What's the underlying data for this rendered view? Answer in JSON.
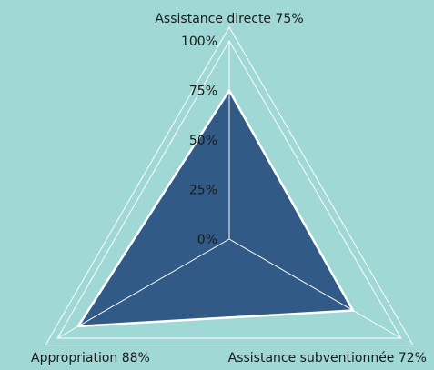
{
  "colors": {
    "background": "#9fd8d5",
    "grid": "#ffffff",
    "fill": "#325a86",
    "outline": "#ffffff"
  },
  "chart_data": {
    "type": "radar",
    "axes": [
      {
        "name": "Assistance directe",
        "value": 75,
        "label": "Assistance directe 75%"
      },
      {
        "name": "Assistance subventionnée",
        "value": 72,
        "label": "Assistance subventionnée 72%"
      },
      {
        "name": "Appropriation",
        "value": 88,
        "label": "Appropriation 88%"
      }
    ],
    "rlim": [
      0,
      100
    ],
    "ticks": [
      {
        "value": 0,
        "label": "0%"
      },
      {
        "value": 25,
        "label": "25%"
      },
      {
        "value": 50,
        "label": "50%"
      },
      {
        "value": 75,
        "label": "75%"
      },
      {
        "value": 100,
        "label": "100%"
      }
    ],
    "grid_rings": [
      100,
      107
    ]
  }
}
